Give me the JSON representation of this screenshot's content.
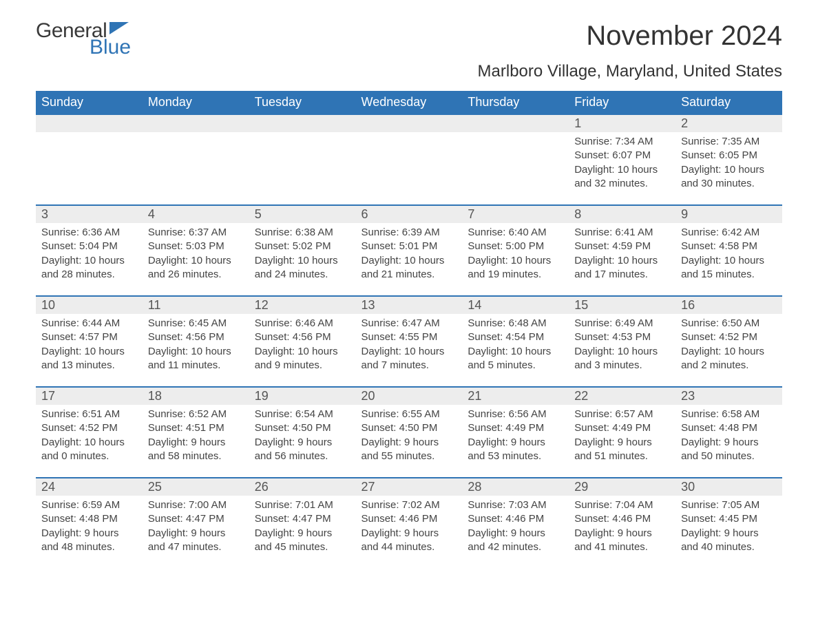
{
  "logo": {
    "word1": "General",
    "word2": "Blue",
    "flag_color": "#2f74b5"
  },
  "title": "November 2024",
  "subtitle": "Marlboro Village, Maryland, United States",
  "colors": {
    "header_bg": "#2f74b5",
    "header_text": "#ffffff",
    "daynum_bg": "#ededed",
    "row_border": "#2f74b5",
    "body_text": "#444444",
    "page_bg": "#ffffff"
  },
  "typography": {
    "title_fontsize": 40,
    "subtitle_fontsize": 24,
    "th_fontsize": 18,
    "daynum_fontsize": 18,
    "body_fontsize": 15
  },
  "day_headers": [
    "Sunday",
    "Monday",
    "Tuesday",
    "Wednesday",
    "Thursday",
    "Friday",
    "Saturday"
  ],
  "labels": {
    "sunrise": "Sunrise:",
    "sunset": "Sunset:",
    "daylight": "Daylight:"
  },
  "weeks": [
    [
      null,
      null,
      null,
      null,
      null,
      {
        "n": "1",
        "sunrise": "7:34 AM",
        "sunset": "6:07 PM",
        "daylight": "10 hours and 32 minutes."
      },
      {
        "n": "2",
        "sunrise": "7:35 AM",
        "sunset": "6:05 PM",
        "daylight": "10 hours and 30 minutes."
      }
    ],
    [
      {
        "n": "3",
        "sunrise": "6:36 AM",
        "sunset": "5:04 PM",
        "daylight": "10 hours and 28 minutes."
      },
      {
        "n": "4",
        "sunrise": "6:37 AM",
        "sunset": "5:03 PM",
        "daylight": "10 hours and 26 minutes."
      },
      {
        "n": "5",
        "sunrise": "6:38 AM",
        "sunset": "5:02 PM",
        "daylight": "10 hours and 24 minutes."
      },
      {
        "n": "6",
        "sunrise": "6:39 AM",
        "sunset": "5:01 PM",
        "daylight": "10 hours and 21 minutes."
      },
      {
        "n": "7",
        "sunrise": "6:40 AM",
        "sunset": "5:00 PM",
        "daylight": "10 hours and 19 minutes."
      },
      {
        "n": "8",
        "sunrise": "6:41 AM",
        "sunset": "4:59 PM",
        "daylight": "10 hours and 17 minutes."
      },
      {
        "n": "9",
        "sunrise": "6:42 AM",
        "sunset": "4:58 PM",
        "daylight": "10 hours and 15 minutes."
      }
    ],
    [
      {
        "n": "10",
        "sunrise": "6:44 AM",
        "sunset": "4:57 PM",
        "daylight": "10 hours and 13 minutes."
      },
      {
        "n": "11",
        "sunrise": "6:45 AM",
        "sunset": "4:56 PM",
        "daylight": "10 hours and 11 minutes."
      },
      {
        "n": "12",
        "sunrise": "6:46 AM",
        "sunset": "4:56 PM",
        "daylight": "10 hours and 9 minutes."
      },
      {
        "n": "13",
        "sunrise": "6:47 AM",
        "sunset": "4:55 PM",
        "daylight": "10 hours and 7 minutes."
      },
      {
        "n": "14",
        "sunrise": "6:48 AM",
        "sunset": "4:54 PM",
        "daylight": "10 hours and 5 minutes."
      },
      {
        "n": "15",
        "sunrise": "6:49 AM",
        "sunset": "4:53 PM",
        "daylight": "10 hours and 3 minutes."
      },
      {
        "n": "16",
        "sunrise": "6:50 AM",
        "sunset": "4:52 PM",
        "daylight": "10 hours and 2 minutes."
      }
    ],
    [
      {
        "n": "17",
        "sunrise": "6:51 AM",
        "sunset": "4:52 PM",
        "daylight": "10 hours and 0 minutes."
      },
      {
        "n": "18",
        "sunrise": "6:52 AM",
        "sunset": "4:51 PM",
        "daylight": "9 hours and 58 minutes."
      },
      {
        "n": "19",
        "sunrise": "6:54 AM",
        "sunset": "4:50 PM",
        "daylight": "9 hours and 56 minutes."
      },
      {
        "n": "20",
        "sunrise": "6:55 AM",
        "sunset": "4:50 PM",
        "daylight": "9 hours and 55 minutes."
      },
      {
        "n": "21",
        "sunrise": "6:56 AM",
        "sunset": "4:49 PM",
        "daylight": "9 hours and 53 minutes."
      },
      {
        "n": "22",
        "sunrise": "6:57 AM",
        "sunset": "4:49 PM",
        "daylight": "9 hours and 51 minutes."
      },
      {
        "n": "23",
        "sunrise": "6:58 AM",
        "sunset": "4:48 PM",
        "daylight": "9 hours and 50 minutes."
      }
    ],
    [
      {
        "n": "24",
        "sunrise": "6:59 AM",
        "sunset": "4:48 PM",
        "daylight": "9 hours and 48 minutes."
      },
      {
        "n": "25",
        "sunrise": "7:00 AM",
        "sunset": "4:47 PM",
        "daylight": "9 hours and 47 minutes."
      },
      {
        "n": "26",
        "sunrise": "7:01 AM",
        "sunset": "4:47 PM",
        "daylight": "9 hours and 45 minutes."
      },
      {
        "n": "27",
        "sunrise": "7:02 AM",
        "sunset": "4:46 PM",
        "daylight": "9 hours and 44 minutes."
      },
      {
        "n": "28",
        "sunrise": "7:03 AM",
        "sunset": "4:46 PM",
        "daylight": "9 hours and 42 minutes."
      },
      {
        "n": "29",
        "sunrise": "7:04 AM",
        "sunset": "4:46 PM",
        "daylight": "9 hours and 41 minutes."
      },
      {
        "n": "30",
        "sunrise": "7:05 AM",
        "sunset": "4:45 PM",
        "daylight": "9 hours and 40 minutes."
      }
    ]
  ]
}
